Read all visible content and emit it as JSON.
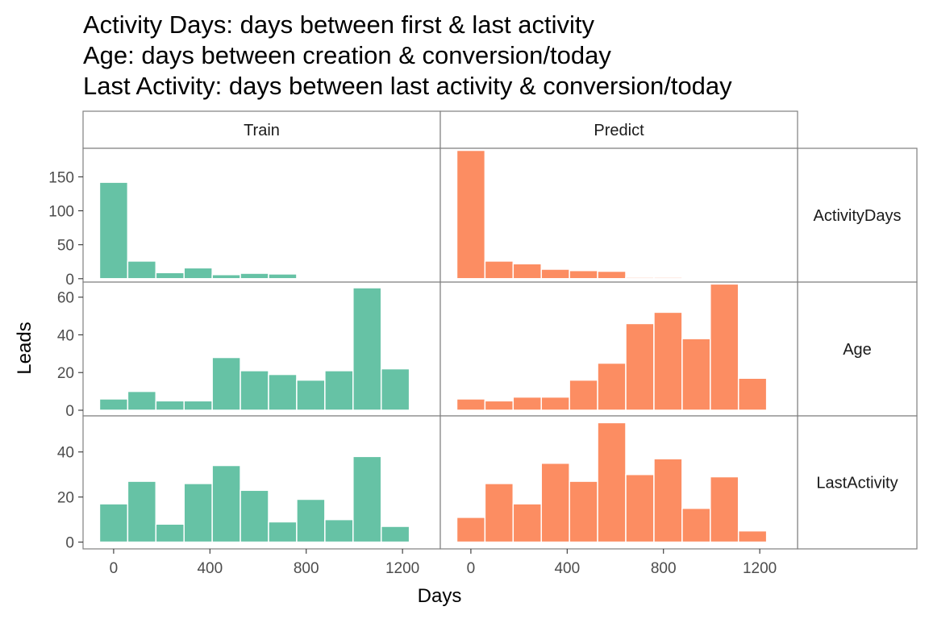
{
  "chart_data": {
    "type": "bar",
    "layout": "facet grid: rows = metric, columns = dataset",
    "title_lines": [
      "Activity Days: days between first & last activity",
      "Age: days between creation & conversion/today",
      "Last Activity: days between last activity & conversion/today"
    ],
    "xlabel": "Days",
    "ylabel": "Leads",
    "x_ticks": [
      0,
      400,
      800,
      1200
    ],
    "xlim": [
      -60,
      1290
    ],
    "bin_width": 117,
    "bin_centers": [
      0,
      117,
      234,
      351,
      468,
      585,
      702,
      819,
      936,
      1053,
      1170
    ],
    "grid": false,
    "legend": "none",
    "columns": [
      "Train",
      "Predict"
    ],
    "rows": [
      {
        "label": "ActivityDays",
        "ylim": [
          -5,
          192
        ],
        "y_ticks": [
          0,
          50,
          100,
          150
        ],
        "series": [
          {
            "column": "Train",
            "color": "#66C2A5",
            "values": [
              142,
              26,
              9,
              16,
              6,
              8,
              7,
              0,
              0,
              0,
              0
            ]
          },
          {
            "column": "Predict",
            "color": "#FC8D62",
            "values": [
              189,
              26,
              22,
              14,
              12,
              11,
              2,
              2,
              0,
              0,
              0
            ]
          }
        ]
      },
      {
        "label": "Age",
        "ylim": [
          -3,
          68
        ],
        "y_ticks": [
          0,
          20,
          40,
          60
        ],
        "series": [
          {
            "column": "Train",
            "color": "#66C2A5",
            "values": [
              6,
              10,
              5,
              5,
              28,
              21,
              19,
              16,
              21,
              65,
              22
            ]
          },
          {
            "column": "Predict",
            "color": "#FC8D62",
            "values": [
              6,
              5,
              7,
              7,
              16,
              25,
              46,
              52,
              38,
              67,
              17
            ]
          }
        ]
      },
      {
        "label": "LastActivity",
        "ylim": [
          -3,
          56
        ],
        "y_ticks": [
          0,
          20,
          40
        ],
        "series": [
          {
            "column": "Train",
            "color": "#66C2A5",
            "values": [
              17,
              27,
              8,
              26,
              34,
              23,
              9,
              19,
              10,
              38,
              7
            ]
          },
          {
            "column": "Predict",
            "color": "#FC8D62",
            "values": [
              11,
              26,
              17,
              35,
              27,
              53,
              30,
              37,
              15,
              29,
              5
            ]
          }
        ]
      }
    ]
  }
}
